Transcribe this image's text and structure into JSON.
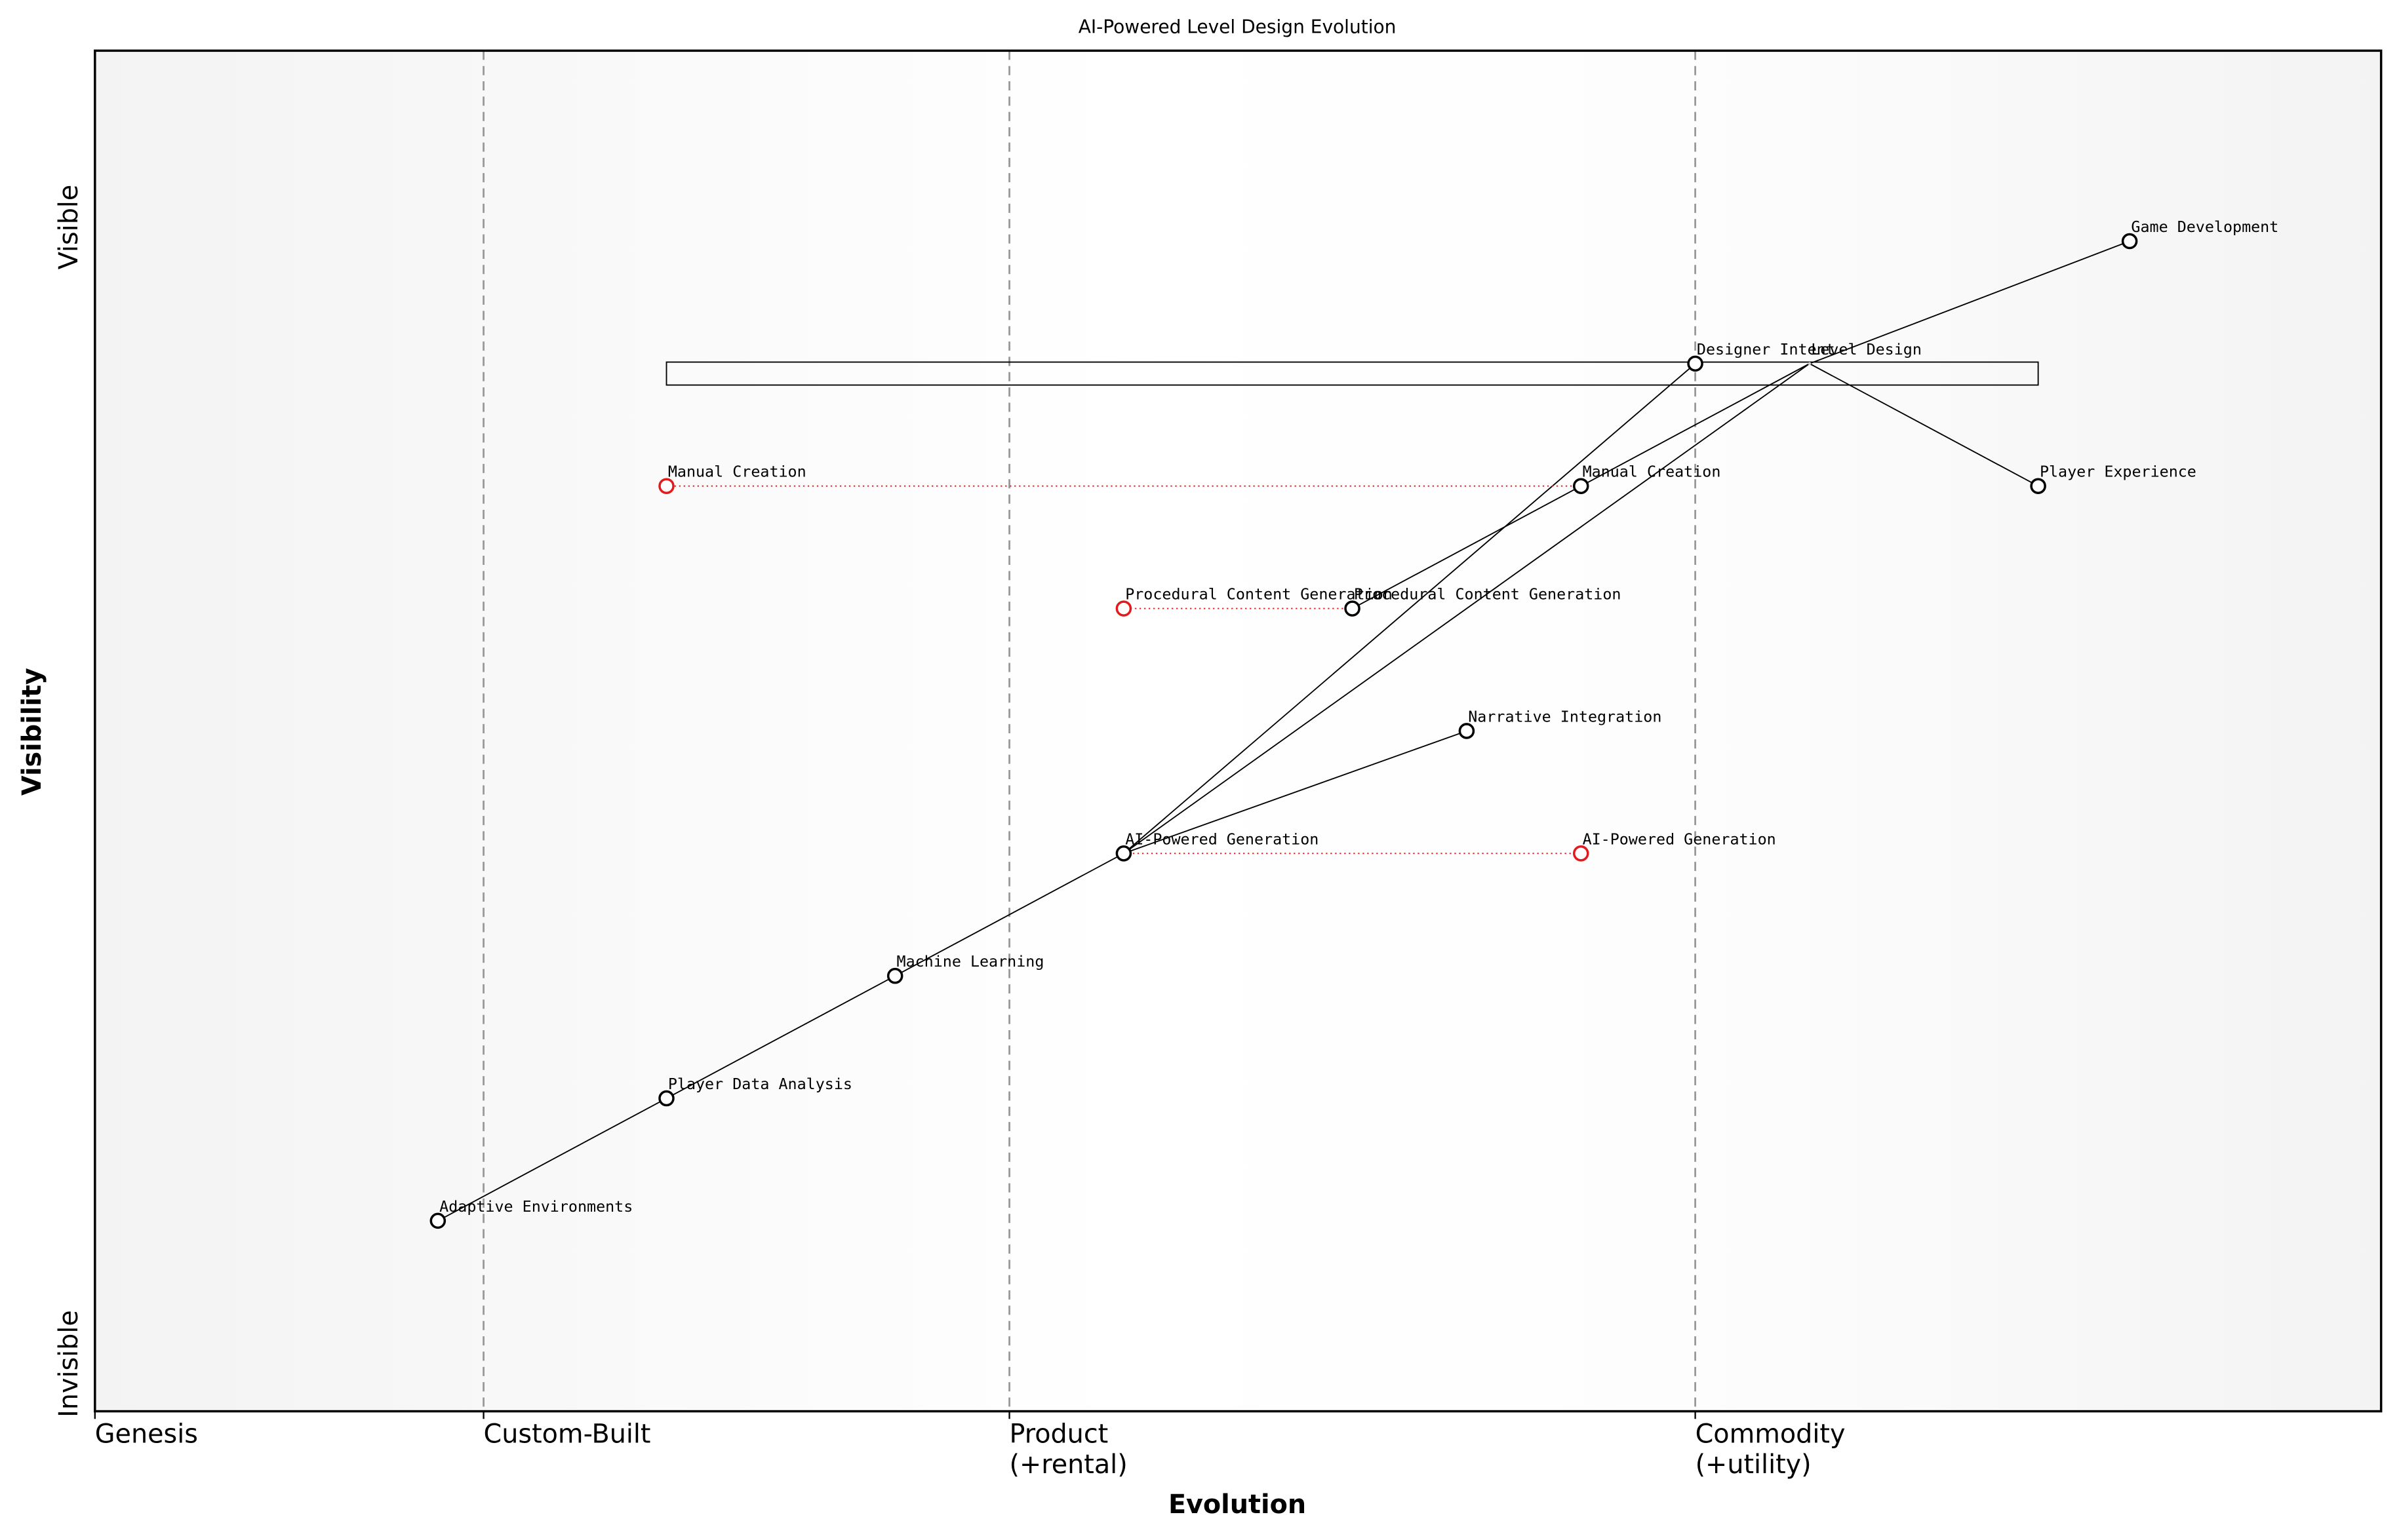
{
  "chart_data": {
    "type": "wardley",
    "title": "AI-Powered Level Design Evolution",
    "xlabel": "Evolution",
    "ylabel": "Visibility",
    "y_top_label": "Visible",
    "y_bottom_label": "Invisible",
    "xlim": [
      0,
      1
    ],
    "ylim": [
      0,
      1
    ],
    "stages": [
      {
        "value": 0,
        "label": [
          "Genesis"
        ]
      },
      {
        "value": 0.17,
        "label": [
          "Custom-Built"
        ]
      },
      {
        "value": 0.4,
        "label": [
          "Product",
          "(+rental)"
        ]
      },
      {
        "value": 0.7,
        "label": [
          "Commodity",
          "(+utility)"
        ]
      }
    ],
    "components": [
      {
        "name": "Game Development",
        "x": 0.89,
        "y": 0.86
      },
      {
        "name": "Level Design",
        "x": 0.75,
        "y": 0.77,
        "hidden": true
      },
      {
        "name": "Player Experience",
        "x": 0.85,
        "y": 0.68
      },
      {
        "name": "Designer Intent",
        "x": 0.7,
        "y": 0.77
      },
      {
        "name": "Manual Creation",
        "x": 0.65,
        "y": 0.68
      },
      {
        "name": "Procedural Content Generation",
        "x": 0.55,
        "y": 0.59
      },
      {
        "name": "Narrative Integration",
        "x": 0.6,
        "y": 0.5
      },
      {
        "name": "AI-Powered Generation",
        "x": 0.45,
        "y": 0.41
      },
      {
        "name": "Machine Learning",
        "x": 0.35,
        "y": 0.32
      },
      {
        "name": "Player Data Analysis",
        "x": 0.25,
        "y": 0.23
      },
      {
        "name": "Adaptive Environments",
        "x": 0.15,
        "y": 0.14
      }
    ],
    "evolved": [
      {
        "name": "Manual Creation",
        "x": 0.25,
        "y": 0.68,
        "color": "#e31a1c"
      },
      {
        "name": "Procedural Content Generation",
        "x": 0.45,
        "y": 0.59,
        "color": "#e31a1c"
      },
      {
        "name": "AI-Powered Generation",
        "x": 0.65,
        "y": 0.41,
        "color": "#e31a1c"
      }
    ],
    "pipeline": {
      "component": "Level Design",
      "x_start": 0.25,
      "x_end": 0.85,
      "y": 0.77
    },
    "links": [
      [
        "Game Development",
        "Level Design"
      ],
      [
        "Level Design",
        "Player Experience"
      ],
      [
        "Level Design",
        "Manual Creation"
      ],
      [
        "Level Design",
        "AI-Powered Generation"
      ],
      [
        "Designer Intent",
        "AI-Powered Generation"
      ],
      [
        "Manual Creation",
        "Procedural Content Generation"
      ],
      [
        "AI-Powered Generation",
        "Narrative Integration"
      ],
      [
        "AI-Powered Generation",
        "Machine Learning"
      ],
      [
        "Machine Learning",
        "Player Data Analysis"
      ],
      [
        "Player Data Analysis",
        "Adaptive Environments"
      ]
    ]
  }
}
